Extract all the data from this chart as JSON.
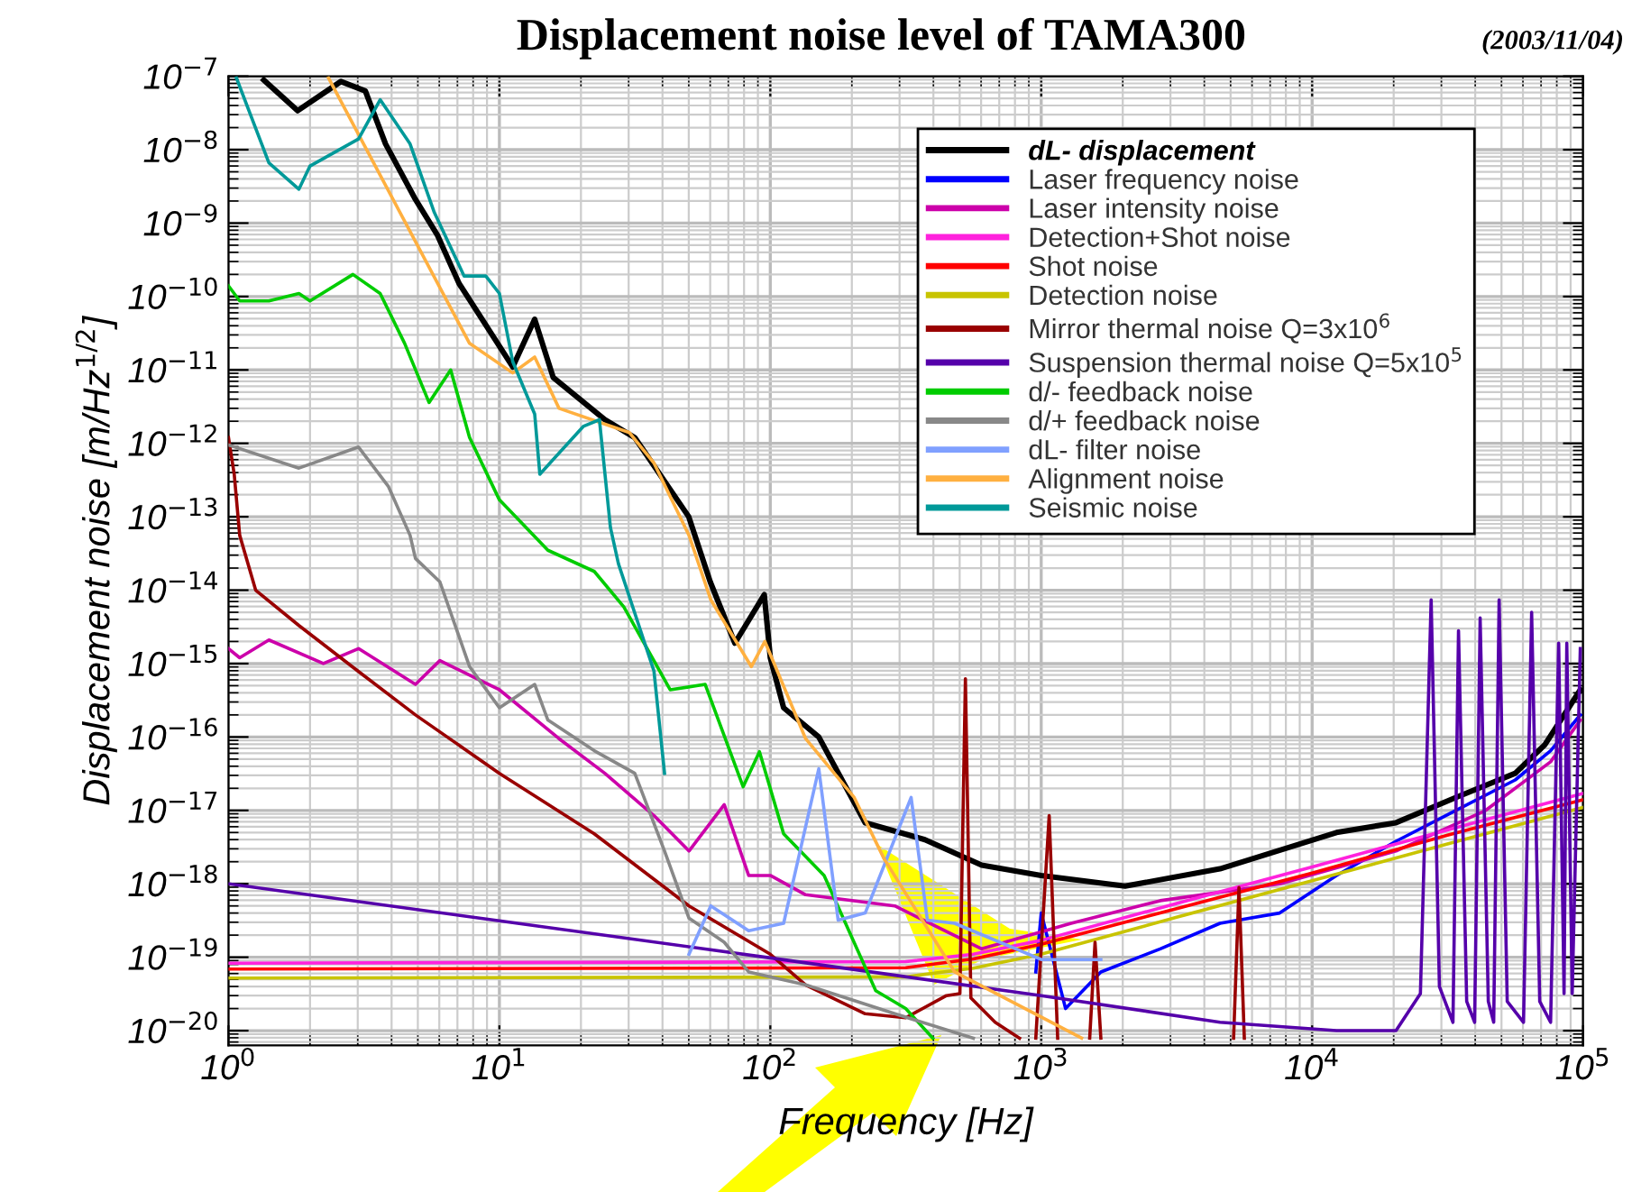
{
  "chart_data": {
    "type": "line",
    "title": "Displacement noise level of TAMA300",
    "annotations": [
      "(2003/11/04)"
    ],
    "xlabel": "Frequency [Hz]",
    "ylabel": "Displacement noise [m/Hz$^{1/2}$]",
    "log": "xy",
    "grid": true,
    "legend": "top right",
    "xlim": [
      1,
      100000
    ],
    "xticks": [
      {
        "value": 1,
        "label": "10$^{0}$"
      },
      {
        "value": 10,
        "label": "10$^{1}$"
      },
      {
        "value": 100,
        "label": "10$^{2}$"
      },
      {
        "value": 1000,
        "label": "10$^{3}$"
      },
      {
        "value": 10000,
        "label": "10$^{4}$"
      },
      {
        "value": 100000,
        "label": "10$^{5}$"
      }
    ],
    "ylim": [
      6.3e-21,
      1e-07
    ],
    "yticks": [
      {
        "value": 1e-20,
        "label": "10$^{−20}$"
      },
      {
        "value": 1e-19,
        "label": "10$^{−19}$"
      },
      {
        "value": 1e-18,
        "label": "10$^{−18}$"
      },
      {
        "value": 1e-17,
        "label": "10$^{−17}$"
      },
      {
        "value": 1e-16,
        "label": "10$^{−16}$"
      },
      {
        "value": 1e-15,
        "label": "10$^{−15}$"
      },
      {
        "value": 1e-14,
        "label": "10$^{−14}$"
      },
      {
        "value": 1e-13,
        "label": "10$^{−13}$"
      },
      {
        "value": 1e-12,
        "label": "10$^{−12}$"
      },
      {
        "value": 1e-11,
        "label": "10$^{−11}$"
      },
      {
        "value": 1e-10,
        "label": "10$^{−10}$"
      },
      {
        "value": 1e-09,
        "label": "10$^{−9}$"
      },
      {
        "value": 1e-08,
        "label": "10$^{−8}$"
      },
      {
        "value": 1e-07,
        "label": "10$^{−7}$"
      }
    ],
    "series": [
      {
        "name": "dL- displacement",
        "color": "#000000",
        "x": [
          1.35,
          1.8,
          2.6,
          3.2,
          3.8,
          4.9,
          5.9,
          7.1,
          11.2,
          13.5,
          15.8,
          24.5,
          31.6,
          50,
          60,
          74,
          95,
          100,
          112,
          151,
          224,
          372,
          603,
          1000,
          2040,
          4570,
          12300,
          20400,
          33900,
          56200,
          72400,
          97700
        ],
        "values": [
          8.9e-08,
          3.4e-08,
          8.5e-08,
          6.3e-08,
          1.2e-08,
          2.1e-09,
          6.9e-10,
          1.5e-10,
          1.1e-11,
          4.9e-11,
          7.9e-12,
          2.1e-12,
          1.2e-12,
          1e-13,
          1.3e-14,
          1.9e-15,
          8.7e-15,
          1.2e-15,
          2.5e-16,
          1e-16,
          6.8e-18,
          4e-18,
          1.8e-18,
          1.3e-18,
          9.3e-19,
          1.6e-18,
          5e-18,
          6.8e-18,
          1.5e-17,
          3.2e-17,
          7.9e-17,
          4.4e-16
        ]
      },
      {
        "name": "Laser frequency noise",
        "color": "#0000ff",
        "x": [
          955,
          1000,
          1230,
          1660,
          2750,
          4570,
          7590,
          12300,
          20400,
          33900,
          56200,
          75900,
          97700
        ],
        "values": [
          6.3e-20,
          4e-19,
          2e-20,
          6.3e-20,
          1.3e-19,
          2.9e-19,
          4e-19,
          1.3e-18,
          3.8e-18,
          1e-17,
          2.6e-17,
          6.5e-17,
          2e-16
        ]
      },
      {
        "name": "Laser intensity noise",
        "color": "#cc00aa",
        "x": [
          1,
          1.1,
          1.41,
          2.24,
          3.02,
          4.9,
          6.03,
          10,
          16.6,
          24.5,
          37.2,
          50.1,
          67.6,
          83.2,
          100,
          135,
          288,
          603,
          1290,
          2750,
          7590,
          20400,
          43700,
          75900,
          97700
        ],
        "values": [
          1.6e-15,
          1.2e-15,
          2.1e-15,
          1e-15,
          1.6e-15,
          5.2e-16,
          1.1e-15,
          4.4e-16,
          9.5e-17,
          3.2e-17,
          8.5e-18,
          2.8e-18,
          1.2e-17,
          1.3e-18,
          1.3e-18,
          7.1e-19,
          5e-19,
          1.3e-19,
          2.9e-19,
          5.9e-19,
          1e-18,
          2.8e-18,
          1e-17,
          4.6e-17,
          1.7e-16
        ]
      },
      {
        "name": "Detection+Shot noise",
        "color": "#ff22dd",
        "x": [
          1,
          316,
          562,
          1000,
          3160,
          10000,
          31600,
          100000
        ],
        "values": [
          8.3e-20,
          8.7e-20,
          1.1e-19,
          1.7e-19,
          5.4e-19,
          1.7e-18,
          5.4e-18,
          1.7e-17
        ]
      },
      {
        "name": "Shot noise",
        "color": "#ff0000",
        "x": [
          1,
          316,
          562,
          1000,
          3160,
          10000,
          31600,
          100000
        ],
        "values": [
          6.9e-20,
          7.2e-20,
          9.5e-20,
          1.5e-19,
          4.6e-19,
          1.4e-18,
          4.6e-18,
          1.4e-17
        ]
      },
      {
        "name": "Detection noise",
        "color": "#c8c400",
        "x": [
          1,
          316,
          562,
          1000,
          3160,
          10000,
          31600,
          100000
        ],
        "values": [
          5.2e-20,
          5.4e-20,
          7.1e-20,
          1.1e-19,
          3.5e-19,
          1.1e-18,
          3.5e-18,
          1.1e-17
        ]
      },
      {
        "name": "Mirror thermal noise Q=3x10$^{6}$",
        "color": "#990000",
        "x": [
          1,
          1.05,
          1.1,
          1.26,
          1.82,
          3.02,
          4.9,
          10,
          22.4,
          50.1,
          100,
          135,
          224,
          316,
          447,
          501,
          525,
          550,
          676,
          832,
          870,
          955,
          1070,
          1150,
          1400,
          1510,
          1580,
          1660,
          4800,
          5130,
          5370,
          5620
        ],
        "values": [
          1.2e-12,
          3.8e-13,
          5.6e-14,
          1e-14,
          3.3e-15,
          7.8e-16,
          2e-16,
          3.2e-17,
          4.8e-18,
          5e-19,
          1.1e-19,
          4.2e-20,
          1.7e-20,
          1.5e-20,
          3e-20,
          3.2e-20,
          6.2e-16,
          2.8e-20,
          1.3e-20,
          7.9e-21,
          null,
          7.9e-21,
          8.5e-18,
          7.9e-21,
          null,
          7.9e-21,
          1.6e-19,
          7.9e-21,
          null,
          7.9e-21,
          8.9e-19,
          7.9e-21
        ]
      },
      {
        "name": "Suspension thermal noise Q=5x10$^{5}$",
        "color": "#5500aa",
        "x": [
          1,
          100,
          1000,
          4570,
          12300,
          20400,
          25100,
          27500,
          29500,
          33100,
          34700,
          37200,
          39800,
          41700,
          44700,
          46800,
          49000,
          52500,
          60300,
          64600,
          69200,
          75900,
          81300,
          85100,
          87100,
          91200,
          97700
        ],
        "values": [
          1e-18,
          9.8e-20,
          3e-20,
          1.3e-20,
          1e-20,
          1e-20,
          3.2e-20,
          7.4e-15,
          4e-20,
          1.3e-20,
          2.8e-15,
          2.5e-20,
          1.3e-20,
          4.2e-15,
          2.5e-20,
          1.3e-20,
          7.4e-15,
          2.5e-20,
          1.3e-20,
          5e-15,
          2.5e-20,
          1.3e-20,
          1.9e-15,
          3.2e-20,
          1.9e-15,
          3.2e-20,
          1.6e-15
        ]
      },
      {
        "name": "d/- feedback noise",
        "color": "#00cc00",
        "x": [
          1,
          1.1,
          1.41,
          1.82,
          2,
          2.88,
          3.63,
          4.47,
          5.5,
          6.61,
          7.76,
          10,
          15.1,
          22.4,
          28.8,
          42.7,
          57.5,
          79.4,
          91.2,
          112,
          158,
          245,
          316,
          398
        ],
        "values": [
          1.4e-10,
          8.7e-11,
          8.7e-11,
          1.1e-10,
          8.7e-11,
          2e-10,
          1.1e-10,
          2.3e-11,
          3.6e-12,
          1e-11,
          1.2e-12,
          1.7e-13,
          3.5e-14,
          1.8e-14,
          5.9e-15,
          4.4e-16,
          5.2e-16,
          2.1e-17,
          6.3e-17,
          4.8e-18,
          1.3e-18,
          3.5e-20,
          2e-20,
          7.9e-21
        ]
      },
      {
        "name": "d/+ feedback noise",
        "color": "#888888",
        "x": [
          1,
          1.82,
          3.02,
          3.89,
          4.68,
          4.9,
          6.03,
          7.76,
          10,
          13.5,
          15.1,
          22.4,
          31.6,
          40.7,
          50.1,
          67.6,
          83.2,
          135,
          288,
          562
        ],
        "values": [
          9.5e-13,
          4.6e-13,
          8.9e-13,
          2.6e-13,
          5.6e-14,
          2.7e-14,
          1.3e-14,
          9.1e-16,
          2.5e-16,
          5.2e-16,
          1.7e-16,
          6.5e-17,
          3.2e-17,
          2.8e-18,
          3.4e-19,
          1.6e-19,
          6.3e-20,
          4.2e-20,
          1.7e-20,
          7.9e-21
        ]
      },
      {
        "name": "dL- filter noise",
        "color": "#80a0ff",
        "x": [
          50.1,
          60.3,
          83.2,
          112,
          151,
          178,
          224,
          331,
          380,
          479,
          1000,
          1660
        ],
        "values": [
          1.1e-19,
          5e-19,
          2.3e-19,
          2.9e-19,
          3.7e-17,
          3.2e-19,
          4e-19,
          1.5e-17,
          3.2e-19,
          2.9e-19,
          9.3e-20,
          9.3e-20
        ]
      },
      {
        "name": "Alignment noise",
        "color": "#ffb040",
        "x": [
          2.34,
          7.76,
          11.2,
          13.5,
          16.6,
          30.2,
          37.2,
          50.1,
          60.3,
          85.1,
          95.5,
          135,
          204,
          263,
          479,
          1410
        ],
        "values": [
          9.5e-08,
          2.3e-11,
          9.1e-12,
          1.5e-11,
          3e-12,
          1.4e-12,
          5.4e-13,
          5.6e-14,
          7.4e-15,
          9.1e-16,
          2e-15,
          9.5e-17,
          1.5e-17,
          2.2e-18,
          6.3e-20,
          7.9e-21
        ]
      },
      {
        "name": "Seismic noise",
        "color": "#009999",
        "x": [
          1.07,
          1.41,
          1.82,
          2,
          3.02,
          3.63,
          4.68,
          5.75,
          7.41,
          8.91,
          10,
          11.2,
          13.5,
          14.1,
          20.4,
          23.4,
          25.7,
          27.5,
          37.2,
          40.7
        ],
        "values": [
          9.5e-08,
          6.6e-09,
          2.9e-09,
          6e-09,
          1.4e-08,
          4.8e-08,
          1.2e-08,
          1.4e-09,
          1.9e-10,
          1.9e-10,
          1.1e-10,
          1.3e-11,
          2.5e-12,
          3.8e-13,
          1.7e-12,
          2.1e-12,
          7.1e-14,
          2.3e-14,
          7.9e-16,
          3.2e-17
        ]
      }
    ]
  }
}
